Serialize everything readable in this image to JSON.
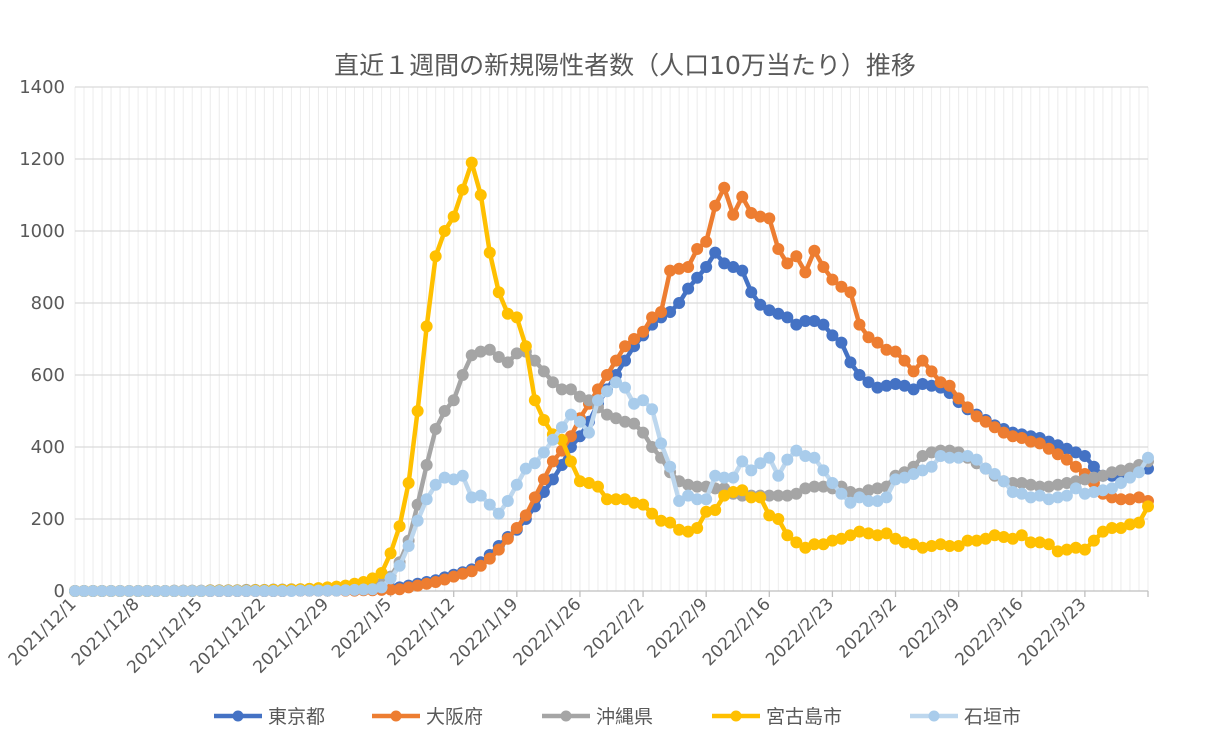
{
  "chart_data": {
    "type": "line",
    "title": "直近１週間の新規陽性者数（人口10万当たり）推移",
    "xlabel": "",
    "ylabel": "",
    "ylim": [
      0,
      1400
    ],
    "yticks": [
      "0",
      "200",
      "400",
      "600",
      "800",
      "1000",
      "1200",
      "1400"
    ],
    "x_start": "2021/12/1",
    "x_end": "2022/3/30",
    "x_step": "1 day",
    "xtick_labels": [
      "2021/12/1",
      "2021/12/8",
      "2021/12/15",
      "2021/12/22",
      "2021/12/29",
      "2022/1/5",
      "2022/1/12",
      "2022/1/19",
      "2022/1/26",
      "2022/2/2",
      "2022/2/9",
      "2022/2/16",
      "2022/2/23",
      "2022/3/2",
      "2022/3/9",
      "2022/3/16",
      "2022/3/23"
    ],
    "grid": "on",
    "legend_position": "bottom",
    "series": [
      {
        "name": "東京都",
        "color": "#4472C4",
        "marker": "#4472C4",
        "values": [
          0,
          0,
          0,
          0,
          0,
          0,
          0,
          0,
          0,
          0,
          0,
          0,
          0,
          0,
          0,
          0,
          0,
          0,
          0,
          0,
          0,
          0,
          0,
          0,
          1,
          1,
          1,
          1,
          2,
          2,
          2,
          3,
          4,
          5,
          6,
          8,
          10,
          15,
          20,
          25,
          30,
          38,
          45,
          52,
          60,
          80,
          100,
          125,
          150,
          170,
          200,
          235,
          275,
          310,
          350,
          400,
          430,
          470,
          520,
          560,
          600,
          640,
          680,
          710,
          740,
          760,
          775,
          800,
          840,
          870,
          900,
          940,
          910,
          900,
          890,
          830,
          795,
          780,
          770,
          760,
          740,
          750,
          750,
          740,
          710,
          690,
          635,
          600,
          580,
          565,
          570,
          575,
          570,
          560,
          575,
          570,
          565,
          550,
          525,
          505,
          490,
          475,
          460,
          450,
          440,
          435,
          430,
          425,
          415,
          405,
          395,
          385,
          375,
          345,
          320,
          320,
          325,
          330,
          335,
          340
        ]
      },
      {
        "name": "大阪府",
        "color": "#ED7D31",
        "marker": "#ED7D31",
        "values": [
          0,
          0,
          0,
          0,
          0,
          0,
          0,
          0,
          0,
          0,
          0,
          0,
          0,
          0,
          0,
          0,
          0,
          0,
          0,
          0,
          0,
          0,
          0,
          0,
          1,
          1,
          1,
          1,
          1,
          1,
          1,
          1,
          2,
          2,
          3,
          4,
          5,
          10,
          15,
          20,
          25,
          32,
          40,
          48,
          55,
          70,
          90,
          115,
          145,
          175,
          210,
          260,
          310,
          360,
          390,
          430,
          480,
          520,
          560,
          600,
          640,
          680,
          700,
          720,
          760,
          775,
          890,
          895,
          900,
          950,
          970,
          1070,
          1120,
          1045,
          1095,
          1050,
          1040,
          1035,
          950,
          910,
          930,
          885,
          945,
          900,
          865,
          845,
          830,
          740,
          705,
          690,
          670,
          665,
          640,
          610,
          640,
          610,
          580,
          570,
          535,
          510,
          485,
          470,
          455,
          440,
          430,
          425,
          415,
          410,
          395,
          380,
          365,
          345,
          325,
          300,
          270,
          260,
          255,
          255,
          260,
          250
        ]
      },
      {
        "name": "沖縄県",
        "color": "#A5A5A5",
        "marker": "#A5A5A5",
        "values": [
          0,
          0,
          0,
          0,
          0,
          0,
          0,
          0,
          0,
          0,
          0,
          1,
          1,
          1,
          1,
          2,
          2,
          2,
          2,
          3,
          3,
          3,
          4,
          4,
          5,
          5,
          6,
          6,
          7,
          8,
          9,
          10,
          12,
          15,
          20,
          40,
          80,
          140,
          240,
          350,
          450,
          500,
          530,
          600,
          655,
          665,
          670,
          650,
          635,
          660,
          665,
          640,
          610,
          580,
          560,
          560,
          540,
          530,
          510,
          490,
          480,
          470,
          465,
          440,
          400,
          370,
          330,
          305,
          295,
          290,
          290,
          285,
          285,
          270,
          265,
          265,
          265,
          265,
          265,
          265,
          270,
          285,
          290,
          290,
          285,
          290,
          275,
          270,
          280,
          285,
          290,
          320,
          330,
          345,
          375,
          385,
          390,
          390,
          385,
          370,
          355,
          340,
          320,
          305,
          300,
          300,
          295,
          290,
          290,
          295,
          300,
          305,
          310,
          315,
          320,
          330,
          335,
          340,
          350,
          360
        ]
      },
      {
        "name": "宮古島市",
        "color": "#FFC000",
        "marker": "#FFC000",
        "values": [
          0,
          0,
          0,
          0,
          0,
          0,
          0,
          0,
          0,
          0,
          0,
          0,
          0,
          0,
          0,
          1,
          1,
          1,
          1,
          1,
          2,
          2,
          3,
          3,
          4,
          5,
          6,
          8,
          10,
          12,
          15,
          20,
          25,
          35,
          50,
          105,
          180,
          300,
          500,
          735,
          930,
          1000,
          1040,
          1115,
          1190,
          1100,
          940,
          830,
          770,
          760,
          680,
          530,
          475,
          435,
          420,
          360,
          305,
          300,
          290,
          255,
          255,
          255,
          245,
          240,
          215,
          195,
          190,
          170,
          165,
          175,
          220,
          225,
          265,
          275,
          280,
          260,
          260,
          210,
          200,
          155,
          135,
          120,
          130,
          130,
          140,
          145,
          155,
          165,
          160,
          155,
          160,
          145,
          135,
          130,
          120,
          125,
          130,
          125,
          125,
          140,
          140,
          145,
          155,
          150,
          145,
          155,
          135,
          135,
          130,
          110,
          115,
          120,
          115,
          140,
          165,
          175,
          175,
          185,
          190,
          235
        ]
      },
      {
        "name": "石垣市",
        "color": "#BDD7EE",
        "marker": "#A9CCEB",
        "values": [
          0,
          0,
          0,
          0,
          0,
          0,
          0,
          0,
          0,
          0,
          0,
          0,
          0,
          0,
          0,
          0,
          0,
          0,
          0,
          0,
          0,
          0,
          0,
          0,
          0,
          1,
          1,
          1,
          1,
          1,
          2,
          3,
          4,
          5,
          10,
          35,
          70,
          125,
          195,
          255,
          295,
          315,
          310,
          320,
          260,
          265,
          240,
          215,
          250,
          295,
          340,
          355,
          385,
          420,
          455,
          490,
          470,
          440,
          530,
          555,
          580,
          565,
          520,
          530,
          505,
          410,
          345,
          250,
          265,
          255,
          255,
          320,
          315,
          315,
          360,
          335,
          355,
          370,
          320,
          365,
          390,
          375,
          370,
          335,
          300,
          270,
          245,
          260,
          250,
          250,
          260,
          310,
          315,
          325,
          335,
          345,
          375,
          370,
          370,
          375,
          365,
          340,
          325,
          305,
          275,
          270,
          260,
          265,
          255,
          260,
          265,
          285,
          270,
          275,
          280,
          285,
          300,
          315,
          330,
          370
        ]
      }
    ]
  }
}
